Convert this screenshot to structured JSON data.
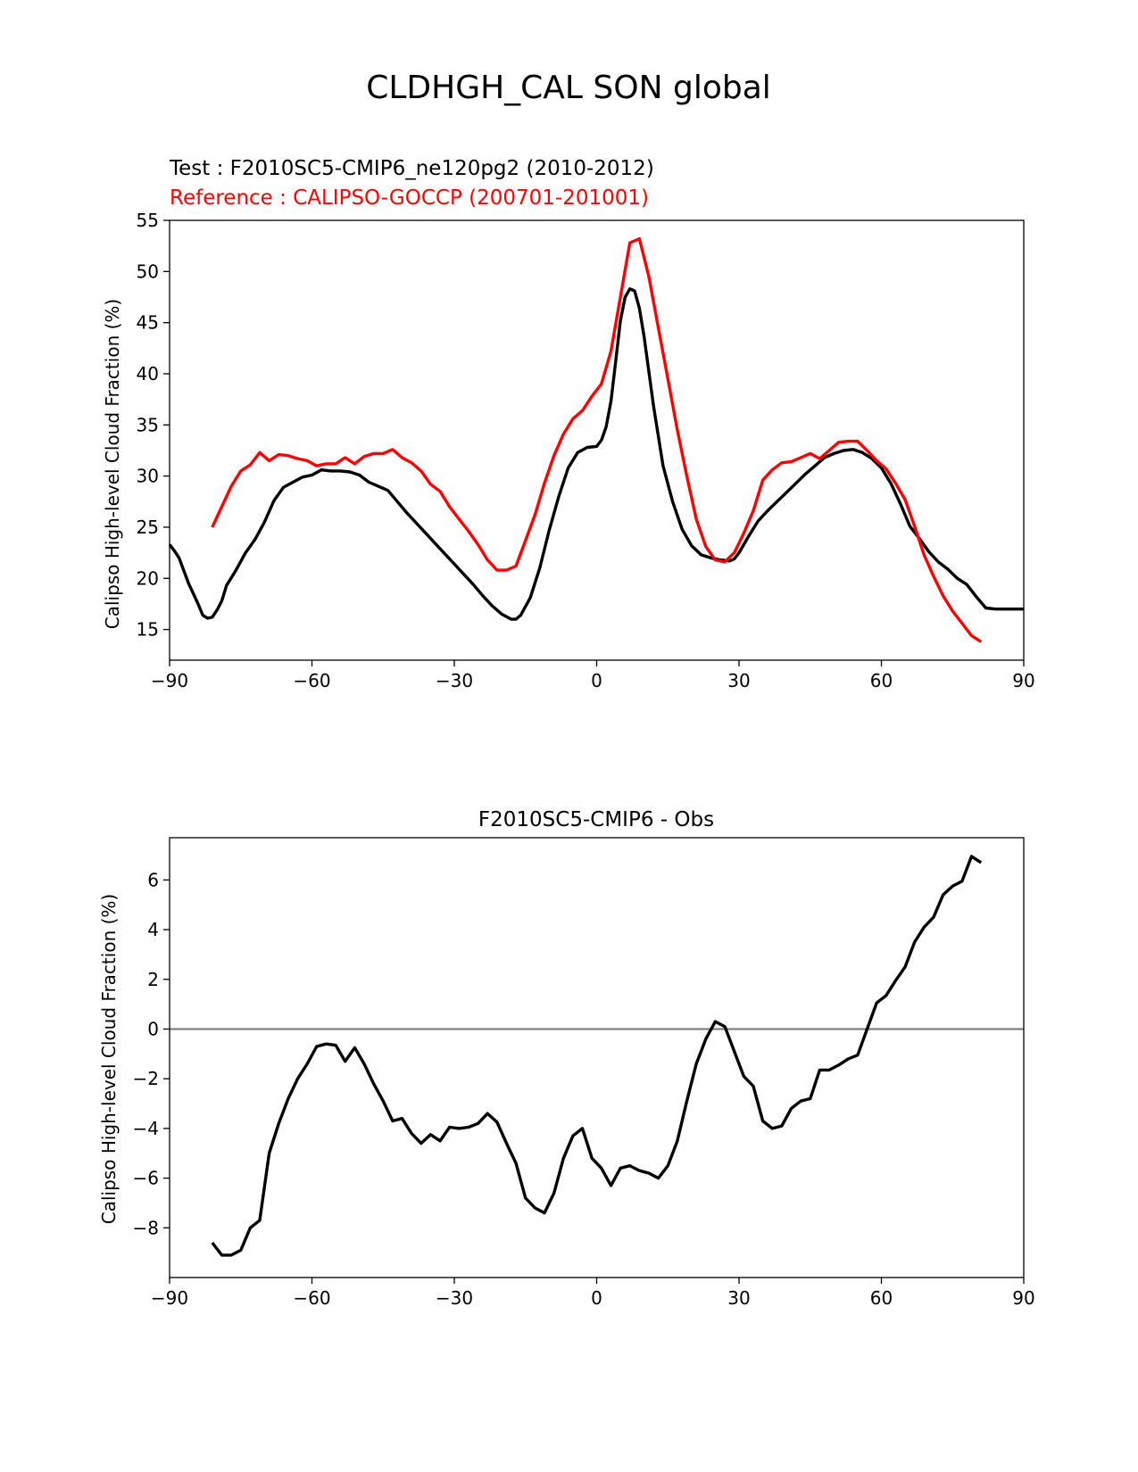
{
  "page_title": "CLDHGH_CAL SON global",
  "chart_data": [
    {
      "type": "line",
      "test_label": "Test : F2010SC5-CMIP6_ne120pg2 (2010-2012)",
      "ref_label": "Reference : CALIPSO-GOCCP (200701-201001)",
      "ylabel": "Calipso High-level Cloud Fraction (%)",
      "xlim": [
        -90,
        90
      ],
      "ylim": [
        12,
        55
      ],
      "xticks": [
        -90,
        -60,
        -30,
        0,
        30,
        60,
        90
      ],
      "xtick_labels": [
        "−90",
        "−60",
        "−30",
        "0",
        "30",
        "60",
        "90"
      ],
      "yticks": [
        15,
        20,
        25,
        30,
        35,
        40,
        45,
        50,
        55
      ],
      "ytick_labels": [
        "15",
        "20",
        "25",
        "30",
        "35",
        "40",
        "45",
        "50",
        "55"
      ],
      "series": [
        {
          "name": "Test",
          "color": "#000000",
          "x": [
            -90,
            -89,
            -88,
            -86,
            -84,
            -83,
            -82,
            -81,
            -80,
            -79,
            -78,
            -76,
            -74,
            -72,
            -70,
            -68,
            -66,
            -64,
            -62,
            -60,
            -58,
            -56,
            -54,
            -52,
            -50,
            -48,
            -46,
            -44,
            -42,
            -40,
            -38,
            -36,
            -34,
            -32,
            -30,
            -28,
            -26,
            -24,
            -22,
            -20,
            -18,
            -17,
            -16,
            -14,
            -12,
            -10,
            -8,
            -6,
            -4,
            -2,
            0,
            1,
            2,
            3,
            4,
            5,
            6,
            7,
            8,
            9,
            10,
            12,
            14,
            16,
            18,
            20,
            22,
            24,
            26,
            28,
            29,
            30,
            32,
            34,
            36,
            38,
            40,
            42,
            44,
            46,
            48,
            50,
            52,
            54,
            56,
            58,
            60,
            62,
            64,
            66,
            68,
            70,
            72,
            74,
            76,
            78,
            80,
            82,
            84,
            86,
            88,
            89,
            90
          ],
          "y": [
            23.3,
            22.7,
            22.0,
            19.5,
            17.5,
            16.4,
            16.1,
            16.2,
            16.9,
            17.8,
            19.3,
            20.8,
            22.5,
            23.8,
            25.5,
            27.6,
            28.9,
            29.4,
            29.9,
            30.1,
            30.6,
            30.5,
            30.5,
            30.4,
            30.1,
            29.4,
            29.0,
            28.6,
            27.5,
            26.4,
            25.4,
            24.4,
            23.4,
            22.4,
            21.4,
            20.4,
            19.4,
            18.3,
            17.3,
            16.5,
            16.0,
            16.0,
            16.4,
            18.1,
            21.0,
            24.7,
            28.0,
            30.8,
            32.3,
            32.8,
            32.9,
            33.5,
            34.8,
            37.3,
            41.2,
            45.2,
            47.5,
            48.3,
            48.1,
            46.4,
            43.6,
            36.8,
            31.0,
            27.5,
            24.8,
            23.2,
            22.3,
            22.0,
            21.8,
            21.7,
            21.9,
            22.5,
            24.1,
            25.6,
            26.6,
            27.5,
            28.4,
            29.3,
            30.2,
            31.0,
            31.8,
            32.2,
            32.5,
            32.6,
            32.3,
            31.7,
            30.8,
            29.3,
            27.3,
            25.1,
            23.9,
            22.6,
            21.6,
            20.9,
            20.0,
            19.4,
            18.2,
            17.1,
            17.0,
            17.0,
            17.0,
            17.0,
            17.0
          ]
        },
        {
          "name": "Reference",
          "color": "#ff0000",
          "x": [
            -81,
            -79,
            -77,
            -75,
            -73,
            -71,
            -69,
            -67,
            -65,
            -63,
            -61,
            -59,
            -57,
            -55,
            -53,
            -51,
            -49,
            -47,
            -45,
            -43,
            -41,
            -39,
            -37,
            -35,
            -33,
            -31,
            -29,
            -27,
            -25,
            -23,
            -21,
            -19,
            -17,
            -15,
            -13,
            -11,
            -9,
            -7,
            -5,
            -3,
            -1,
            1,
            3,
            5,
            7,
            9,
            11,
            13,
            15,
            17,
            19,
            21,
            23,
            25,
            27,
            29,
            31,
            33,
            35,
            37,
            39,
            41,
            43,
            45,
            47,
            49,
            51,
            53,
            55,
            57,
            59,
            61,
            63,
            65,
            67,
            69,
            71,
            73,
            75,
            77,
            79,
            81
          ],
          "y": [
            25.0,
            27.0,
            29.0,
            30.5,
            31.1,
            32.3,
            31.5,
            32.1,
            32.0,
            31.7,
            31.5,
            31.0,
            31.2,
            31.2,
            31.8,
            31.2,
            31.9,
            32.2,
            32.2,
            32.6,
            31.8,
            31.3,
            30.5,
            29.2,
            28.5,
            27.0,
            25.8,
            24.6,
            23.3,
            21.8,
            20.8,
            20.8,
            21.2,
            23.7,
            26.2,
            29.3,
            32.0,
            34.1,
            35.6,
            36.4,
            37.8,
            39.0,
            42.2,
            47.5,
            52.8,
            53.2,
            49.5,
            44.5,
            39.5,
            34.5,
            30.0,
            25.8,
            23.1,
            21.8,
            21.6,
            22.5,
            24.4,
            26.6,
            29.6,
            30.6,
            31.3,
            31.4,
            31.8,
            32.2,
            31.7,
            32.5,
            33.3,
            33.4,
            33.4,
            32.5,
            31.5,
            30.7,
            29.3,
            27.7,
            25.1,
            22.3,
            20.2,
            18.3,
            16.8,
            15.6,
            14.4,
            13.8
          ]
        }
      ]
    },
    {
      "type": "line",
      "title": "F2010SC5-CMIP6 - Obs",
      "ylabel": "Calipso High-level Cloud Fraction (%)",
      "xlim": [
        -90,
        90
      ],
      "ylim": [
        -10,
        7.7
      ],
      "xticks": [
        -90,
        -60,
        -30,
        0,
        30,
        60,
        90
      ],
      "xtick_labels": [
        "−90",
        "−60",
        "−30",
        "0",
        "30",
        "60",
        "90"
      ],
      "yticks": [
        -8,
        -6,
        -4,
        -2,
        0,
        2,
        4,
        6
      ],
      "ytick_labels": [
        "−8",
        "−6",
        "−4",
        "−2",
        "0",
        "2",
        "4",
        "6"
      ],
      "zero_line_color": "#808080",
      "series": [
        {
          "name": "Test - Obs",
          "color": "#000000",
          "x": [
            -81,
            -79,
            -77,
            -75,
            -73,
            -71,
            -69,
            -67,
            -65,
            -63,
            -61,
            -59,
            -57,
            -55,
            -53,
            -51,
            -49,
            -47,
            -45,
            -43,
            -41,
            -39,
            -37,
            -35,
            -33,
            -31,
            -29,
            -27,
            -25,
            -23,
            -21,
            -19,
            -17,
            -15,
            -13,
            -11,
            -9,
            -7,
            -5,
            -3,
            -1,
            1,
            3,
            5,
            7,
            9,
            11,
            13,
            15,
            17,
            19,
            21,
            23,
            25,
            27,
            29,
            31,
            33,
            35,
            37,
            39,
            41,
            43,
            45,
            47,
            49,
            51,
            53,
            55,
            57,
            59,
            61,
            63,
            65,
            67,
            69,
            71,
            73,
            75,
            77,
            79,
            81
          ],
          "y": [
            -8.6,
            -9.1,
            -9.1,
            -8.9,
            -8.0,
            -7.7,
            -5.0,
            -3.8,
            -2.8,
            -2.0,
            -1.4,
            -0.7,
            -0.6,
            -0.65,
            -1.3,
            -0.75,
            -1.4,
            -2.2,
            -2.9,
            -3.7,
            -3.6,
            -4.2,
            -4.6,
            -4.25,
            -4.5,
            -3.95,
            -4.0,
            -3.95,
            -3.8,
            -3.4,
            -3.75,
            -4.6,
            -5.4,
            -6.8,
            -7.2,
            -7.4,
            -6.6,
            -5.2,
            -4.3,
            -4.0,
            -5.2,
            -5.6,
            -6.3,
            -5.6,
            -5.5,
            -5.7,
            -5.8,
            -6.0,
            -5.5,
            -4.5,
            -2.9,
            -1.4,
            -0.4,
            0.3,
            0.1,
            -0.9,
            -1.9,
            -2.3,
            -3.7,
            -4.0,
            -3.9,
            -3.2,
            -2.9,
            -2.8,
            -1.65,
            -1.65,
            -1.45,
            -1.2,
            -1.05,
            0.0,
            1.05,
            1.35,
            1.95,
            2.5,
            3.5,
            4.1,
            4.5,
            5.4,
            5.75,
            5.95,
            6.95,
            6.7
          ]
        }
      ]
    }
  ]
}
